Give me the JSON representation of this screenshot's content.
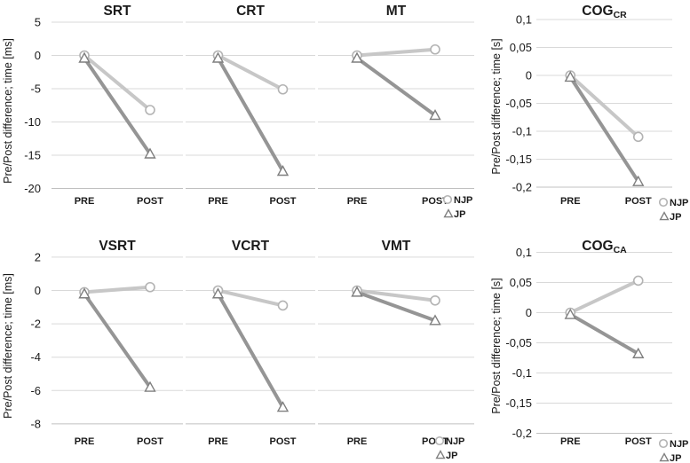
{
  "figure": {
    "background": "#ffffff"
  },
  "colors": {
    "njp_line": "#c7c7c7",
    "jp_line": "#959595",
    "circle_marker_stroke": "#b3b3b3",
    "triangle_marker_stroke": "#7f7f7f",
    "marker_fill": "#ffffff",
    "gridline": "#d9d9d9",
    "axis_line": "#c0c0c0",
    "text": "#1a1a1a"
  },
  "legend": {
    "items": [
      {
        "marker": "circle-outline",
        "label": "NJP"
      },
      {
        "marker": "triangle-outline",
        "label": "JP"
      }
    ]
  },
  "chart_data": [
    {
      "id": "srt",
      "type": "line",
      "title": "SRT",
      "title_subscript": "",
      "ylabel": "Pre/Post difference; time [ms]",
      "ylim": [
        -20,
        5
      ],
      "yticks": [
        5,
        0,
        -5,
        -10,
        -15,
        -20
      ],
      "ytick_labels": [
        "5",
        "0",
        "-5",
        "-10",
        "-15",
        "-20"
      ],
      "categories": [
        "PRE",
        "POST"
      ],
      "grid": true,
      "series": [
        {
          "name": "NJP",
          "marker": "circle",
          "values": [
            0,
            -8.2
          ]
        },
        {
          "name": "JP",
          "marker": "triangle",
          "values": [
            -0.4,
            -14.8
          ]
        }
      ],
      "show_legend": false
    },
    {
      "id": "crt",
      "type": "line",
      "title": "CRT",
      "title_subscript": "",
      "ylabel": "",
      "ylim": [
        -20,
        5
      ],
      "yticks": [
        5,
        0,
        -5,
        -10,
        -15,
        -20
      ],
      "ytick_labels": null,
      "categories": [
        "PRE",
        "POST"
      ],
      "grid": true,
      "series": [
        {
          "name": "NJP",
          "marker": "circle",
          "values": [
            0,
            -5.1
          ]
        },
        {
          "name": "JP",
          "marker": "triangle",
          "values": [
            -0.4,
            -17.4
          ]
        }
      ],
      "show_legend": false
    },
    {
      "id": "mt",
      "type": "line",
      "title": "MT",
      "title_subscript": "",
      "ylabel": "",
      "ylim": [
        -20,
        5
      ],
      "yticks": [
        5,
        0,
        -5,
        -10,
        -15,
        -20
      ],
      "ytick_labels": null,
      "categories": [
        "PRE",
        "POST"
      ],
      "grid": true,
      "series": [
        {
          "name": "NJP",
          "marker": "circle",
          "values": [
            0,
            0.9
          ]
        },
        {
          "name": "JP",
          "marker": "triangle",
          "values": [
            -0.4,
            -9
          ]
        }
      ],
      "show_legend": true
    },
    {
      "id": "cog_cr",
      "type": "line",
      "title": "COG",
      "title_subscript": "CR",
      "ylabel": "Pre/Post difference; time [s]",
      "ylim": [
        -0.2,
        0.1
      ],
      "yticks": [
        0.1,
        0.05,
        0,
        -0.05,
        -0.1,
        -0.15,
        -0.2
      ],
      "ytick_labels": [
        "0,1",
        "0,05",
        "0",
        "-0,05",
        "-0,1",
        "-0,15",
        "-0,2"
      ],
      "categories": [
        "PRE",
        "POST"
      ],
      "grid": true,
      "series": [
        {
          "name": "NJP",
          "marker": "circle",
          "values": [
            0,
            -0.11
          ]
        },
        {
          "name": "JP",
          "marker": "triangle",
          "values": [
            -0.003,
            -0.19
          ]
        }
      ],
      "show_legend": true
    },
    {
      "id": "vsrt",
      "type": "line",
      "title": "VSRT",
      "title_subscript": "",
      "ylabel": "Pre/Post difference; time [ms]",
      "ylim": [
        -8,
        2
      ],
      "yticks": [
        2,
        0,
        -2,
        -4,
        -6,
        -8
      ],
      "ytick_labels": [
        "2",
        "0",
        "-2",
        "-4",
        "-6",
        "-8"
      ],
      "categories": [
        "PRE",
        "POST"
      ],
      "grid": true,
      "series": [
        {
          "name": "NJP",
          "marker": "circle",
          "values": [
            -0.1,
            0.2
          ]
        },
        {
          "name": "JP",
          "marker": "triangle",
          "values": [
            -0.2,
            -5.8
          ]
        }
      ],
      "show_legend": false
    },
    {
      "id": "vcrt",
      "type": "line",
      "title": "VCRT",
      "title_subscript": "",
      "ylabel": "",
      "ylim": [
        -8,
        2
      ],
      "yticks": [
        2,
        0,
        -2,
        -4,
        -6,
        -8
      ],
      "ytick_labels": null,
      "categories": [
        "PRE",
        "POST"
      ],
      "grid": true,
      "series": [
        {
          "name": "NJP",
          "marker": "circle",
          "values": [
            0,
            -0.9
          ]
        },
        {
          "name": "JP",
          "marker": "triangle",
          "values": [
            -0.2,
            -7
          ]
        }
      ],
      "show_legend": false
    },
    {
      "id": "vmt",
      "type": "line",
      "title": "VMT",
      "title_subscript": "",
      "ylabel": "",
      "ylim": [
        -8,
        2
      ],
      "yticks": [
        2,
        0,
        -2,
        -4,
        -6,
        -8
      ],
      "ytick_labels": null,
      "categories": [
        "PRE",
        "POST"
      ],
      "grid": true,
      "series": [
        {
          "name": "NJP",
          "marker": "circle",
          "values": [
            0,
            -0.6
          ]
        },
        {
          "name": "JP",
          "marker": "triangle",
          "values": [
            -0.1,
            -1.8
          ]
        }
      ],
      "show_legend": true
    },
    {
      "id": "cog_ca",
      "type": "line",
      "title": "COG",
      "title_subscript": "CA",
      "ylabel": "Pre/Post difference; time [s]",
      "ylim": [
        -0.2,
        0.1
      ],
      "yticks": [
        0.1,
        0.05,
        0,
        -0.05,
        -0.1,
        -0.15,
        -0.2
      ],
      "ytick_labels": [
        "0,1",
        "0,05",
        "0",
        "-0,05",
        "-0,1",
        "-0,15",
        "-0,2"
      ],
      "categories": [
        "PRE",
        "POST"
      ],
      "grid": true,
      "series": [
        {
          "name": "NJP",
          "marker": "circle",
          "values": [
            0,
            0.053
          ]
        },
        {
          "name": "JP",
          "marker": "triangle",
          "values": [
            -0.003,
            -0.068
          ]
        }
      ],
      "show_legend": true
    }
  ]
}
